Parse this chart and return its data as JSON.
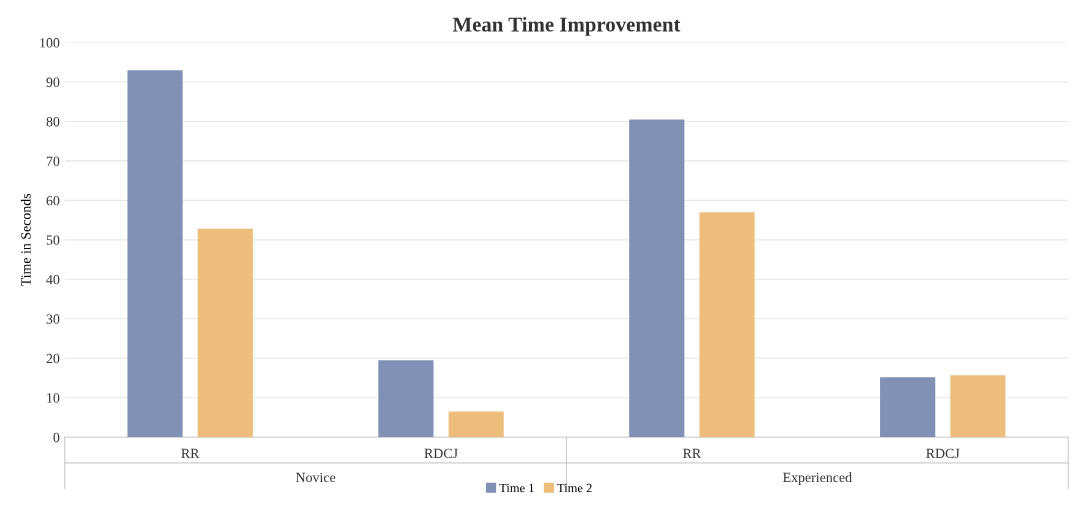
{
  "chart_data": {
    "type": "bar",
    "title": "Mean Time Improvement",
    "ylabel": "Time in Seconds",
    "categories": [
      "RR",
      "RDCJ",
      "RR",
      "RDCJ"
    ],
    "annotations": [
      "Novice",
      "Experienced"
    ],
    "series": [
      {
        "name": "Time 1",
        "color": "#8190b5",
        "values": [
          93,
          19.5,
          80.5,
          15.2
        ]
      },
      {
        "name": "Time 2",
        "color": "#edbd7b",
        "values": [
          52.8,
          6.5,
          57,
          15.7
        ]
      }
    ],
    "ylim": [
      0,
      100
    ],
    "yticks": [
      0,
      10,
      20,
      30,
      40,
      50,
      60,
      70,
      80,
      90,
      100
    ],
    "grid": "y",
    "legend": "bottom"
  }
}
